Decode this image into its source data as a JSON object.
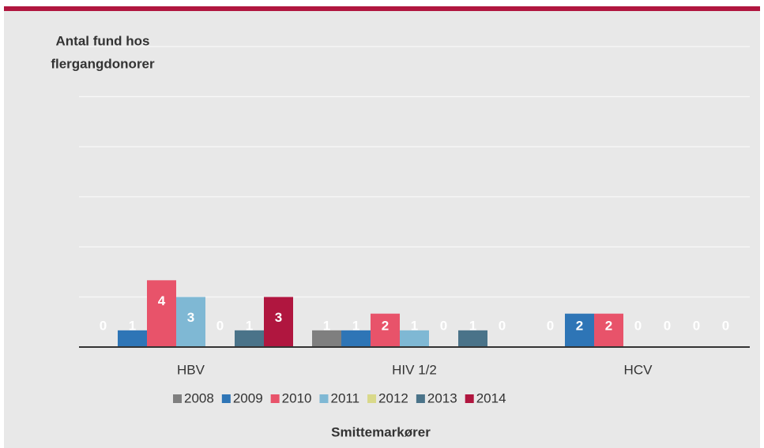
{
  "chart_data": {
    "type": "bar",
    "ylabel": [
      "Antal fund hos",
      "flergangdonorer"
    ],
    "xlabel": "Smittemarkører",
    "categories": [
      "HBV",
      "HIV 1/2",
      "HCV"
    ],
    "series": [
      {
        "name": "2008",
        "color": "#7f7f7f",
        "values": [
          0,
          1,
          0
        ]
      },
      {
        "name": "2009",
        "color": "#2e75b6",
        "values": [
          1,
          1,
          2
        ]
      },
      {
        "name": "2010",
        "color": "#e8536a",
        "values": [
          4,
          2,
          2
        ]
      },
      {
        "name": "2011",
        "color": "#7fb8d4",
        "values": [
          3,
          1,
          0
        ]
      },
      {
        "name": "2012",
        "color": "#d9d98a",
        "values": [
          0,
          0,
          0
        ]
      },
      {
        "name": "2013",
        "color": "#4a7389",
        "values": [
          1,
          1,
          0
        ]
      },
      {
        "name": "2014",
        "color": "#b0163f",
        "values": [
          3,
          0,
          0
        ]
      }
    ],
    "ylim": [
      0,
      18
    ],
    "yticks": [
      0,
      3,
      6,
      9,
      12,
      15,
      18
    ],
    "grid": true,
    "legend": "bottom"
  }
}
